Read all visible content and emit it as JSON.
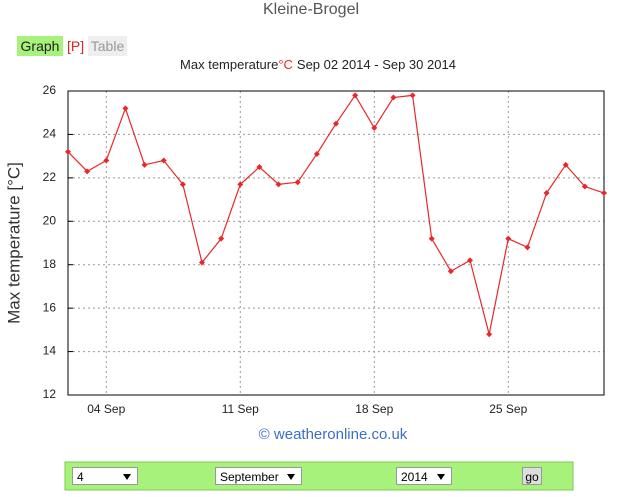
{
  "page": {
    "location": "Kleine-Brogel",
    "tabs": [
      "Graph",
      "[P]",
      "Table"
    ],
    "credit": "© weatheronline.co.uk",
    "form": {
      "day": "4",
      "month": "September",
      "year": "2014",
      "submit": "go"
    }
  },
  "chart_data": {
    "type": "line",
    "title": [
      "Max temperature",
      "°C",
      "Sep 02 2014 - Sep 30 2014"
    ],
    "ylabel": "Max temperature [°C]",
    "categories": [
      null,
      null,
      "04 Sep",
      null,
      null,
      null,
      null,
      null,
      null,
      "11 Sep",
      null,
      null,
      null,
      null,
      null,
      null,
      "18 Sep",
      null,
      null,
      null,
      null,
      null,
      null,
      "25 Sep",
      null,
      null,
      null,
      null,
      null
    ],
    "values": [
      23.2,
      22.3,
      22.8,
      25.2,
      22.6,
      22.8,
      21.7,
      18.1,
      19.2,
      21.7,
      22.5,
      21.7,
      21.8,
      23.1,
      24.5,
      25.8,
      24.3,
      25.7,
      25.8,
      19.2,
      17.7,
      18.2,
      14.8,
      19.2,
      18.8,
      21.3,
      22.6,
      21.6,
      21.3
    ],
    "color": "#e8282a",
    "ylim": [
      12,
      26
    ],
    "yticks": [
      12,
      14,
      16,
      18,
      20,
      22,
      24,
      26
    ],
    "grid": true
  }
}
